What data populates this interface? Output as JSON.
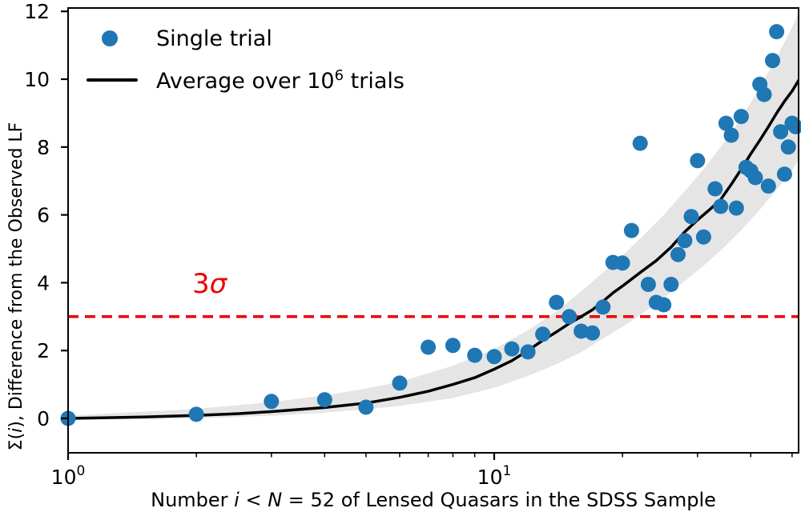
{
  "figure": {
    "background": "#ffffff"
  },
  "legend": {
    "position": "upper left",
    "items": [
      {
        "label": "Single trial",
        "marker": "dot",
        "color": "#1f77b4"
      },
      {
        "label_pre": "Average over 10",
        "label_sup": "6",
        "label_post": " trials",
        "marker": "line",
        "color": "#000000"
      }
    ]
  },
  "annotation": {
    "pre": "3",
    "sigma": "σ",
    "color": "#ee0000"
  },
  "axes": {
    "x": {
      "label_parts": {
        "p1": "Number ",
        "p2": "i",
        "p3": " < ",
        "p4": "N",
        "p5": " = 52 of Lensed Quasars in the SDSS Sample"
      },
      "tick_labels": [
        {
          "base": "10",
          "exp": "0"
        },
        {
          "base": "10",
          "exp": "1"
        }
      ]
    },
    "y": {
      "label_parts": {
        "p1": "Σ(",
        "p2": "i",
        "p3": "), Difference from the Observed LF"
      },
      "tick_labels": [
        "0",
        "2",
        "4",
        "6",
        "8",
        "10",
        "12"
      ]
    }
  },
  "chart_data": {
    "type": "scatter",
    "title": "",
    "xlabel": "Number i < N = 52 of Lensed Quasars in the SDSS Sample",
    "ylabel": "Σ(i), Difference from the Observed LF",
    "x_scale": "log",
    "xlim": [
      1,
      52
    ],
    "ylim": [
      -1,
      12
    ],
    "x_major_ticks": [
      1,
      10
    ],
    "x_minor_ticks": [
      2,
      3,
      4,
      5,
      6,
      7,
      8,
      9,
      20,
      30,
      40,
      50
    ],
    "y_ticks": [
      0,
      2,
      4,
      6,
      8,
      10,
      12
    ],
    "grid": false,
    "legend_position": "upper left",
    "series": [
      {
        "name": "Single trial",
        "type": "scatter",
        "color": "#1f77b4",
        "points": [
          [
            1,
            0.0
          ],
          [
            2,
            0.12
          ],
          [
            3,
            0.5
          ],
          [
            4,
            0.55
          ],
          [
            5,
            0.33
          ],
          [
            6,
            1.04
          ],
          [
            7,
            2.1
          ],
          [
            8,
            2.15
          ],
          [
            9,
            1.86
          ],
          [
            10,
            1.82
          ],
          [
            11,
            2.05
          ],
          [
            12,
            1.96
          ],
          [
            13,
            2.48
          ],
          [
            14,
            3.42
          ],
          [
            15,
            3.0
          ],
          [
            16,
            2.57
          ],
          [
            17,
            2.52
          ],
          [
            18,
            3.28
          ],
          [
            19,
            4.6
          ],
          [
            20,
            4.58
          ],
          [
            21,
            5.54
          ],
          [
            22,
            8.11
          ],
          [
            23,
            3.95
          ],
          [
            24,
            3.42
          ],
          [
            25,
            3.35
          ],
          [
            26,
            3.95
          ],
          [
            27,
            4.83
          ],
          [
            28,
            5.24
          ],
          [
            29,
            5.95
          ],
          [
            30,
            7.6
          ],
          [
            31,
            5.35
          ],
          [
            33,
            6.77
          ],
          [
            34,
            6.25
          ],
          [
            35,
            8.7
          ],
          [
            36,
            8.35
          ],
          [
            37,
            6.2
          ],
          [
            38,
            8.9
          ],
          [
            39,
            7.4
          ],
          [
            40,
            7.3
          ],
          [
            41,
            7.1
          ],
          [
            42,
            9.85
          ],
          [
            43,
            9.55
          ],
          [
            44,
            6.85
          ],
          [
            45,
            10.55
          ],
          [
            46,
            11.4
          ],
          [
            47,
            8.45
          ],
          [
            48,
            7.2
          ],
          [
            49,
            8.0
          ],
          [
            50,
            8.7
          ],
          [
            51,
            8.6
          ]
        ]
      },
      {
        "name": "Average over 10^6 trials",
        "type": "line",
        "color": "#000000",
        "points": [
          [
            1,
            0.0
          ],
          [
            1.5,
            0.04
          ],
          [
            2,
            0.09
          ],
          [
            2.5,
            0.14
          ],
          [
            3,
            0.2
          ],
          [
            4,
            0.32
          ],
          [
            5,
            0.45
          ],
          [
            6,
            0.62
          ],
          [
            7,
            0.8
          ],
          [
            8,
            1.0
          ],
          [
            9,
            1.2
          ],
          [
            10,
            1.45
          ],
          [
            11,
            1.7
          ],
          [
            12,
            2.0
          ],
          [
            13,
            2.3
          ],
          [
            14,
            2.55
          ],
          [
            15,
            2.8
          ],
          [
            16,
            3.0
          ],
          [
            17,
            3.2
          ],
          [
            18,
            3.45
          ],
          [
            19,
            3.7
          ],
          [
            20,
            3.9
          ],
          [
            22,
            4.3
          ],
          [
            24,
            4.65
          ],
          [
            26,
            5.05
          ],
          [
            28,
            5.5
          ],
          [
            30,
            5.85
          ],
          [
            32,
            6.15
          ],
          [
            34,
            6.45
          ],
          [
            36,
            6.9
          ],
          [
            38,
            7.35
          ],
          [
            40,
            7.8
          ],
          [
            42,
            8.2
          ],
          [
            44,
            8.6
          ],
          [
            46,
            9.0
          ],
          [
            48,
            9.35
          ],
          [
            50,
            9.65
          ],
          [
            52,
            10.0
          ]
        ]
      },
      {
        "name": "uncertainty band",
        "type": "band",
        "color": "#e5e5e5",
        "points": [
          [
            1,
            -0.04,
            0.08
          ],
          [
            2,
            0.0,
            0.28
          ],
          [
            3,
            0.08,
            0.48
          ],
          [
            4,
            0.17,
            0.68
          ],
          [
            5,
            0.27,
            0.88
          ],
          [
            6,
            0.37,
            1.08
          ],
          [
            8,
            0.6,
            1.55
          ],
          [
            10,
            0.9,
            2.05
          ],
          [
            12,
            1.25,
            2.6
          ],
          [
            14,
            1.6,
            3.15
          ],
          [
            16,
            1.95,
            3.75
          ],
          [
            18,
            2.35,
            4.3
          ],
          [
            20,
            2.7,
            4.8
          ],
          [
            22,
            3.05,
            5.3
          ],
          [
            25,
            3.55,
            6.0
          ],
          [
            28,
            4.05,
            6.7
          ],
          [
            31,
            4.5,
            7.35
          ],
          [
            34,
            4.95,
            8.0
          ],
          [
            38,
            5.55,
            8.85
          ],
          [
            42,
            6.15,
            9.75
          ],
          [
            46,
            6.75,
            10.65
          ],
          [
            49,
            7.15,
            11.3
          ],
          [
            52,
            7.65,
            12.0
          ]
        ]
      },
      {
        "name": "3σ threshold",
        "type": "hline",
        "y": 3,
        "color": "#ee0000",
        "style": "dashed",
        "label": "3σ"
      }
    ]
  }
}
